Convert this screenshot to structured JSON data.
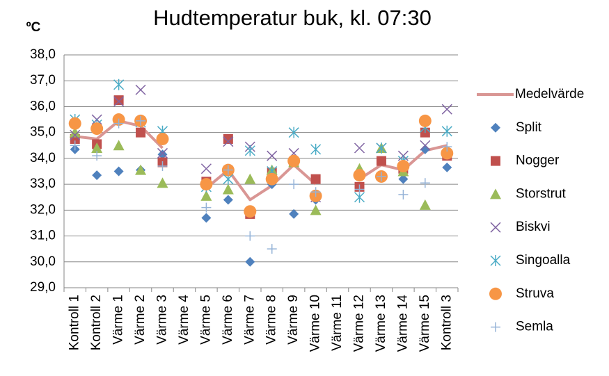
{
  "chart_data": {
    "type": "line",
    "title": "Hudtemperatur buk, kl. 07:30",
    "y_label": "ºC",
    "categories": [
      "Kontroll 1",
      "Kontroll 2",
      "Värme 1",
      "Värme 2",
      "Värme 3",
      "Värme 4",
      "Värme 5",
      "Värme 6",
      "Värme 7",
      "Värme 8",
      "Värme 9",
      "Värme 10",
      "Värme 11",
      "Värme 12",
      "Värme 13",
      "Värme 14",
      "Värme 15",
      "Kontroll 3"
    ],
    "ylim": [
      29,
      38
    ],
    "yticks": [
      {
        "value": 29,
        "label": "29,0"
      },
      {
        "value": 30,
        "label": "30,0"
      },
      {
        "value": 31,
        "label": "31,0"
      },
      {
        "value": 32,
        "label": "32,0"
      },
      {
        "value": 33,
        "label": "33,0"
      },
      {
        "value": 34,
        "label": "34,0"
      },
      {
        "value": 35,
        "label": "35,0"
      },
      {
        "value": 36,
        "label": "36,0"
      },
      {
        "value": 37,
        "label": "37,0"
      },
      {
        "value": 38,
        "label": "38,0"
      }
    ],
    "grid": true,
    "legend": "right",
    "series": [
      {
        "name": "Medelvärde",
        "marker": "line",
        "color": "#d99694",
        "values": [
          34.85,
          34.75,
          35.45,
          35.25,
          34.4,
          null,
          32.85,
          33.55,
          32.4,
          32.95,
          33.75,
          33.0,
          null,
          33.2,
          33.75,
          33.55,
          34.3,
          34.5
        ]
      },
      {
        "name": "Split",
        "marker": "diamond",
        "color": "#4f81bd",
        "values": [
          34.35,
          33.35,
          33.5,
          33.55,
          34.15,
          null,
          31.7,
          32.4,
          30.0,
          33.0,
          31.85,
          32.4,
          null,
          32.9,
          33.3,
          33.2,
          34.35,
          33.65
        ]
      },
      {
        "name": "Nogger",
        "marker": "square",
        "color": "#c0504d",
        "values": [
          34.75,
          34.55,
          36.25,
          35.0,
          33.85,
          null,
          33.1,
          34.75,
          31.85,
          33.45,
          33.85,
          33.2,
          null,
          32.9,
          33.9,
          33.6,
          35.0,
          34.1
        ]
      },
      {
        "name": "Storstrut",
        "marker": "triangle",
        "color": "#9bbb59",
        "values": [
          35.0,
          34.4,
          34.5,
          33.55,
          33.05,
          null,
          32.55,
          32.8,
          33.2,
          33.55,
          33.85,
          32.0,
          null,
          33.6,
          34.4,
          33.5,
          32.2,
          34.3
        ]
      },
      {
        "name": "Biskvi",
        "marker": "x",
        "color": "#8064a2",
        "values": [
          34.9,
          35.5,
          36.2,
          36.65,
          34.2,
          null,
          33.6,
          34.65,
          34.45,
          34.1,
          34.2,
          32.5,
          null,
          34.4,
          34.4,
          34.1,
          34.5,
          35.9
        ]
      },
      {
        "name": "Singoalla",
        "marker": "star",
        "color": "#4bacc6",
        "values": [
          35.5,
          35.3,
          36.85,
          35.4,
          35.05,
          null,
          32.9,
          33.2,
          34.3,
          33.5,
          35.0,
          34.35,
          null,
          32.5,
          34.4,
          33.9,
          35.2,
          35.05
        ]
      },
      {
        "name": "Struva",
        "marker": "circle",
        "color": "#f79646",
        "values": [
          35.35,
          35.15,
          35.5,
          35.45,
          34.75,
          null,
          33.0,
          33.55,
          31.95,
          33.2,
          33.9,
          32.55,
          null,
          33.35,
          33.3,
          33.7,
          35.45,
          34.2
        ]
      },
      {
        "name": "Semla",
        "marker": "plus",
        "color": "#95b3d7",
        "values": [
          34.5,
          34.1,
          35.35,
          35.45,
          33.7,
          null,
          32.1,
          33.55,
          31.0,
          30.5,
          33.0,
          32.7,
          null,
          32.8,
          33.3,
          32.6,
          33.05,
          34.45
        ]
      }
    ]
  }
}
